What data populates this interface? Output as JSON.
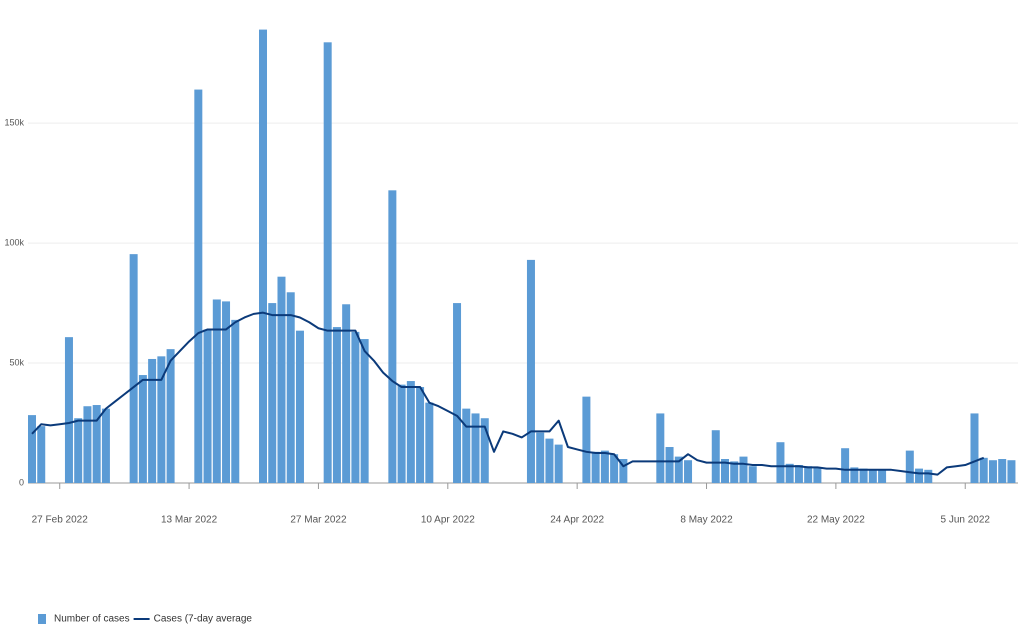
{
  "chart_data": {
    "type": "bar",
    "categories": [
      null,
      null,
      null,
      "27 Feb 2022",
      null,
      null,
      null,
      null,
      null,
      null,
      null,
      null,
      null,
      null,
      null,
      null,
      null,
      "13 Mar 2022",
      null,
      null,
      null,
      null,
      null,
      null,
      null,
      null,
      null,
      null,
      null,
      null,
      null,
      "27 Mar 2022",
      null,
      null,
      null,
      null,
      null,
      null,
      null,
      null,
      null,
      null,
      null,
      null,
      null,
      "10 Apr 2022",
      null,
      null,
      null,
      null,
      null,
      null,
      null,
      null,
      null,
      null,
      null,
      null,
      null,
      "24 Apr 2022",
      null,
      null,
      null,
      null,
      null,
      null,
      null,
      null,
      null,
      null,
      null,
      null,
      null,
      "8 May 2022",
      null,
      null,
      null,
      null,
      null,
      null,
      null,
      null,
      null,
      null,
      null,
      null,
      null,
      "22 May 2022",
      null,
      null,
      null,
      null,
      null,
      null,
      null,
      null,
      null,
      null,
      null,
      null,
      null,
      "5 Jun 2022",
      null,
      null,
      null,
      null,
      null
    ],
    "series": [
      {
        "name": "Number of cases",
        "type": "bar",
        "color": "#5b9bd5",
        "values": [
          28300,
          23700,
          null,
          null,
          60800,
          27000,
          32000,
          32500,
          31000,
          null,
          null,
          95400,
          45000,
          51700,
          52800,
          55800,
          null,
          null,
          164000,
          64000,
          76500,
          75700,
          68000,
          null,
          null,
          189000,
          75000,
          86000,
          79500,
          63500,
          null,
          null,
          183700,
          65000,
          74500,
          63000,
          60000,
          null,
          null,
          122000,
          41000,
          42500,
          40000,
          33500,
          null,
          null,
          75000,
          31000,
          29000,
          27000,
          null,
          null,
          null,
          null,
          93000,
          21000,
          18500,
          16000,
          null,
          null,
          36000,
          13000,
          13500,
          12000,
          10000,
          null,
          null,
          null,
          29000,
          15000,
          11000,
          9500,
          null,
          null,
          22000,
          10000,
          9000,
          11000,
          7000,
          null,
          null,
          17000,
          8000,
          7500,
          7000,
          6500,
          null,
          null,
          14500,
          6500,
          6000,
          5500,
          5500,
          null,
          null,
          13500,
          6000,
          5500,
          null,
          null,
          null,
          null,
          29000,
          10500,
          9500,
          10000,
          9500
        ]
      },
      {
        "name": "Cases (7-day average",
        "type": "line",
        "color": "#0b3a7a",
        "values": [
          20500,
          24500,
          24000,
          24500,
          25000,
          26000,
          26000,
          26000,
          31000,
          34000,
          37000,
          40000,
          43000,
          43000,
          43000,
          51000,
          55000,
          59000,
          62500,
          64000,
          64000,
          64000,
          67000,
          69000,
          70500,
          71000,
          70000,
          70000,
          70000,
          69000,
          67000,
          64500,
          63500,
          63500,
          63500,
          63500,
          55000,
          51000,
          46000,
          42500,
          40000,
          40000,
          40000,
          33500,
          32000,
          30000,
          28000,
          23500,
          23500,
          23500,
          13000,
          21500,
          20500,
          19000,
          21500,
          21500,
          21500,
          26000,
          15000,
          14000,
          13000,
          12500,
          12500,
          12000,
          7000,
          9000,
          9000,
          9000,
          9000,
          9000,
          9000,
          12000,
          9500,
          8500,
          8500,
          8500,
          8000,
          8000,
          7500,
          7500,
          7000,
          7000,
          7000,
          7000,
          6500,
          6500,
          6000,
          6000,
          5500,
          5500,
          5500,
          5500,
          5500,
          5500,
          5000,
          4500,
          4000,
          4000,
          3500,
          6500,
          7000,
          7500,
          9000,
          10500,
          null,
          null,
          null
        ]
      }
    ],
    "ylim": [
      0,
      193000
    ],
    "yticks": [
      0,
      {
        "value": 50000,
        "label": "50k"
      },
      {
        "value": 100000,
        "label": "100k"
      },
      {
        "value": 150000,
        "label": "150k"
      }
    ],
    "grid": true,
    "legend": "bottom-left"
  }
}
